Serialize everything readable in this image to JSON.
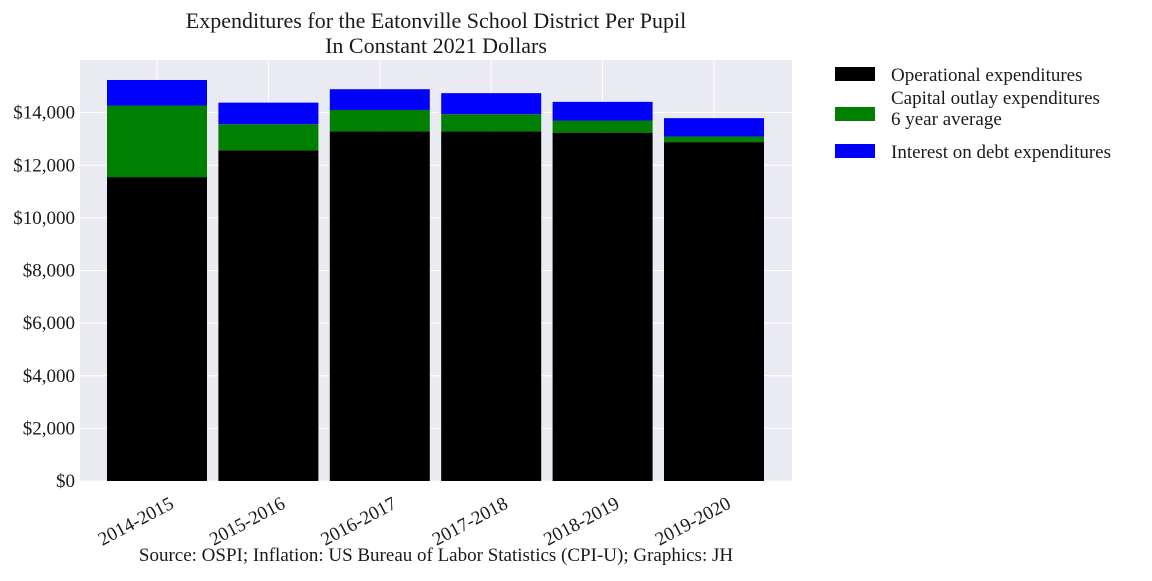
{
  "chart_data": {
    "type": "bar",
    "stacked": true,
    "title": "Expenditures for the Eatonville School District Per Pupil",
    "subtitle": "In Constant 2021 Dollars",
    "footer": "Source: OSPI; Inflation: US Bureau of Labor Statistics (CPI-U); Graphics: JH",
    "categories": [
      "2014-2015",
      "2015-2016",
      "2016-2017",
      "2017-2018",
      "2018-2019",
      "2019-2020"
    ],
    "series": [
      {
        "name": "Operational expenditures",
        "color": "#000000",
        "values": [
          11550,
          12570,
          13290,
          13290,
          13240,
          12880
        ]
      },
      {
        "name": "Capital outlay expenditures\n6 year average",
        "color": "#008000",
        "values": [
          2720,
          990,
          810,
          650,
          460,
          210
        ]
      },
      {
        "name": "Interest on debt expenditures",
        "color": "#0000ff",
        "values": [
          970,
          820,
          790,
          800,
          710,
          700
        ]
      }
    ],
    "ylim": [
      0,
      16000
    ],
    "yticks": [
      0,
      2000,
      4000,
      6000,
      8000,
      10000,
      12000,
      14000
    ],
    "ytick_labels": [
      "$0",
      "$2,000",
      "$4,000",
      "$6,000",
      "$8,000",
      "$10,000",
      "$12,000",
      "$14,000"
    ],
    "grid": true,
    "legend_position": "outside-right-top",
    "colors": {
      "plot_background": "#eaeaf2",
      "grid": "#ffffff"
    }
  }
}
